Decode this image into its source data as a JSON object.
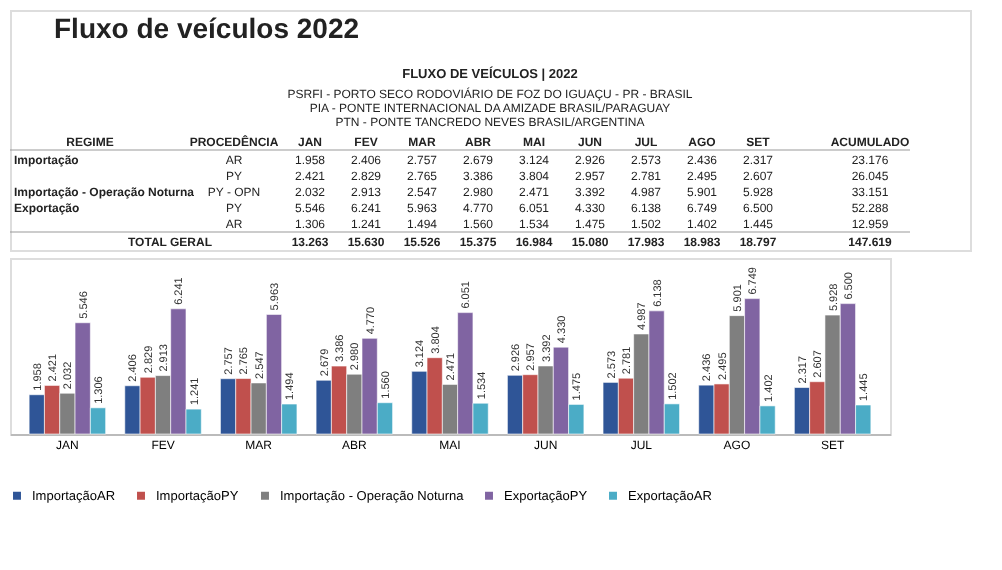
{
  "chart_data": {
    "type": "bar",
    "title": "Fluxo de veículos 2022",
    "subtitle": "FLUXO DE VEÍCULOS | 2022",
    "annotations": [
      "PSRFI - PORTO SECO RODOVIÁRIO DE  FOZ DO IGUAÇU - PR - BRASIL",
      "PIA - PONTE INTERNACIONAL DA AMIZADE  BRASIL/PARAGUAY",
      "PTN - PONTE TANCREDO NEVES BRASIL/ARGENTINA",
      "REGIME",
      "PROCEDÊNCIA",
      "ACUMULADO",
      "Importação",
      "Importação - Operação Noturna",
      "Exportação",
      "TOTAL GERAL",
      "23.176",
      "26.045",
      "33.151",
      "52.288",
      "12.959",
      "147.619",
      "AR",
      "PY",
      "PY - OPN",
      "PY",
      "AR",
      "13.263",
      "15.630",
      "15.526",
      "15.375",
      "16.984",
      "15.080",
      "17.983",
      "18.983",
      "18.797"
    ],
    "categories": [
      "JAN",
      "FEV",
      "MAR",
      "ABR",
      "MAI",
      "JUN",
      "JUL",
      "AGO",
      "SET"
    ],
    "series": [
      {
        "name": "ImportaçãoAR",
        "color": "#2f5597",
        "values": [
          1958,
          2406,
          2757,
          2679,
          3124,
          2926,
          2573,
          2436,
          2317
        ],
        "value_labels": [
          "1.958",
          "2.406",
          "2.757",
          "2.679",
          "3.124",
          "2.926",
          "2.573",
          "2.436",
          "2.317"
        ]
      },
      {
        "name": "ImportaçãoPY",
        "color": "#c0504d",
        "values": [
          2421,
          2829,
          2765,
          3386,
          3804,
          2957,
          2781,
          2495,
          2607
        ],
        "value_labels": [
          "2.421",
          "2.829",
          "2.765",
          "3.386",
          "3.804",
          "2.957",
          "2.781",
          "2.495",
          "2.607"
        ]
      },
      {
        "name": "Importação - Operação Noturna",
        "color": "#7f7f7f",
        "values": [
          2032,
          2913,
          2547,
          2980,
          2471,
          3392,
          4987,
          5901,
          5928
        ],
        "value_labels": [
          "2.032",
          "2.913",
          "2.547",
          "2.980",
          "2.471",
          "3.392",
          "4.987",
          "5.901",
          "5.928"
        ]
      },
      {
        "name": "ExportaçãoPY",
        "color": "#8064a2",
        "values": [
          5546,
          6241,
          5963,
          4770,
          6051,
          4330,
          6138,
          6749,
          6500
        ],
        "value_labels": [
          "5.546",
          "6.241",
          "5.963",
          "4.770",
          "6.051",
          "4.330",
          "6.138",
          "6.749",
          "6.500"
        ]
      },
      {
        "name": "ExportaçãoAR",
        "color": "#4bacc6",
        "values": [
          1306,
          1241,
          1494,
          1560,
          1534,
          1475,
          1502,
          1402,
          1445
        ],
        "value_labels": [
          "1.306",
          "1.241",
          "1.494",
          "1.560",
          "1.534",
          "1.475",
          "1.502",
          "1.402",
          "1.445"
        ]
      }
    ],
    "legend": "bottom",
    "grid": false,
    "tick_labels": "x"
  }
}
